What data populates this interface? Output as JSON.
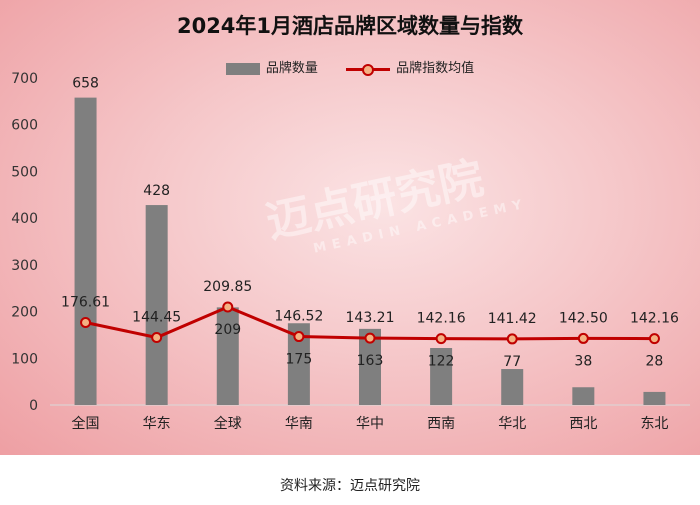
{
  "source_text": "资料来源：迈点研究院",
  "watermark": {
    "text": "迈点研究院",
    "sub": "MEADIN ACADEMY"
  },
  "colors": {
    "bar": "#7f7f7f",
    "line": "#c00000",
    "marker_fill": "#f4b183"
  },
  "chart_data": {
    "type": "bar",
    "title": "2024年1月酒店品牌区域数量与指数",
    "categories": [
      "全国",
      "华东",
      "全球",
      "华南",
      "华中",
      "西南",
      "华北",
      "西北",
      "东北"
    ],
    "ylim": [
      0,
      700
    ],
    "yticks": [
      0,
      100,
      200,
      300,
      400,
      500,
      600,
      700
    ],
    "grid": false,
    "legend_position": "top-center",
    "series": [
      {
        "name": "品牌数量",
        "type": "bar",
        "values": [
          658,
          428,
          209,
          175,
          163,
          122,
          77,
          38,
          28
        ]
      },
      {
        "name": "品牌指数均值",
        "type": "line",
        "values": [
          176.61,
          144.45,
          209.85,
          146.52,
          143.21,
          142.16,
          141.42,
          142.5,
          142.16
        ]
      }
    ]
  }
}
